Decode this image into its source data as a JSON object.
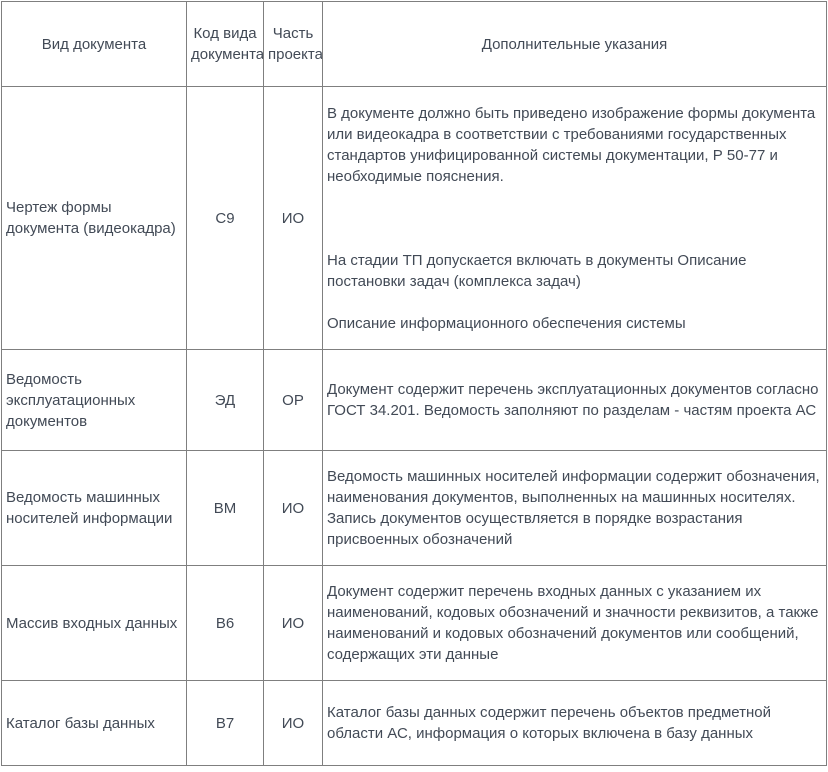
{
  "table": {
    "headers": [
      "Вид документа",
      "Код вида документа",
      "Часть проекта",
      "Дополнительные указания"
    ],
    "rows": [
      {
        "type": "Чертеж формы документа (видеокадра)",
        "code": "С9",
        "part": "ИО",
        "instructions": [
          "В документе должно быть приведено изображение формы документа или видеокадра в соответствии с требованиями государственных стандартов унифицированной системы документации, Р 50-77 и необходимые пояснения.",
          "На стадии ТП допускается включать в документы Описание постановки задач (комплекса задач)",
          "Описание информационного обеспечения системы"
        ]
      },
      {
        "type": "Ведомость эксплуатационных документов",
        "code": "ЭД",
        "part": "ОР",
        "instructions": [
          "Документ содержит перечень эксплуатационных документов согласно ГОСТ 34.201. Ведомость заполняют по разделам - частям проекта АС"
        ]
      },
      {
        "type": "Ведомость машинных носителей информации",
        "code": "ВМ",
        "part": "ИО",
        "instructions": [
          "Ведомость машинных носителей информации содержит обозначения, наименования документов, выполненных на машинных носителях. Запись документов осуществляется в порядке возрастания присвоенных обозначений"
        ]
      },
      {
        "type": "Массив входных данных",
        "code": "В6",
        "part": "ИО",
        "instructions": [
          "Документ содержит перечень входных данных с указанием их наименований, кодовых обозначений и значности реквизитов, а также наименований и кодовых обозначений документов или сообщений, содержащих эти данные"
        ]
      },
      {
        "type": "Каталог базы данных",
        "code": "В7",
        "part": "ИО",
        "instructions": [
          "Каталог базы данных содержит перечень объектов предметной области АС, информация о которых включена в базу данных"
        ]
      }
    ]
  }
}
